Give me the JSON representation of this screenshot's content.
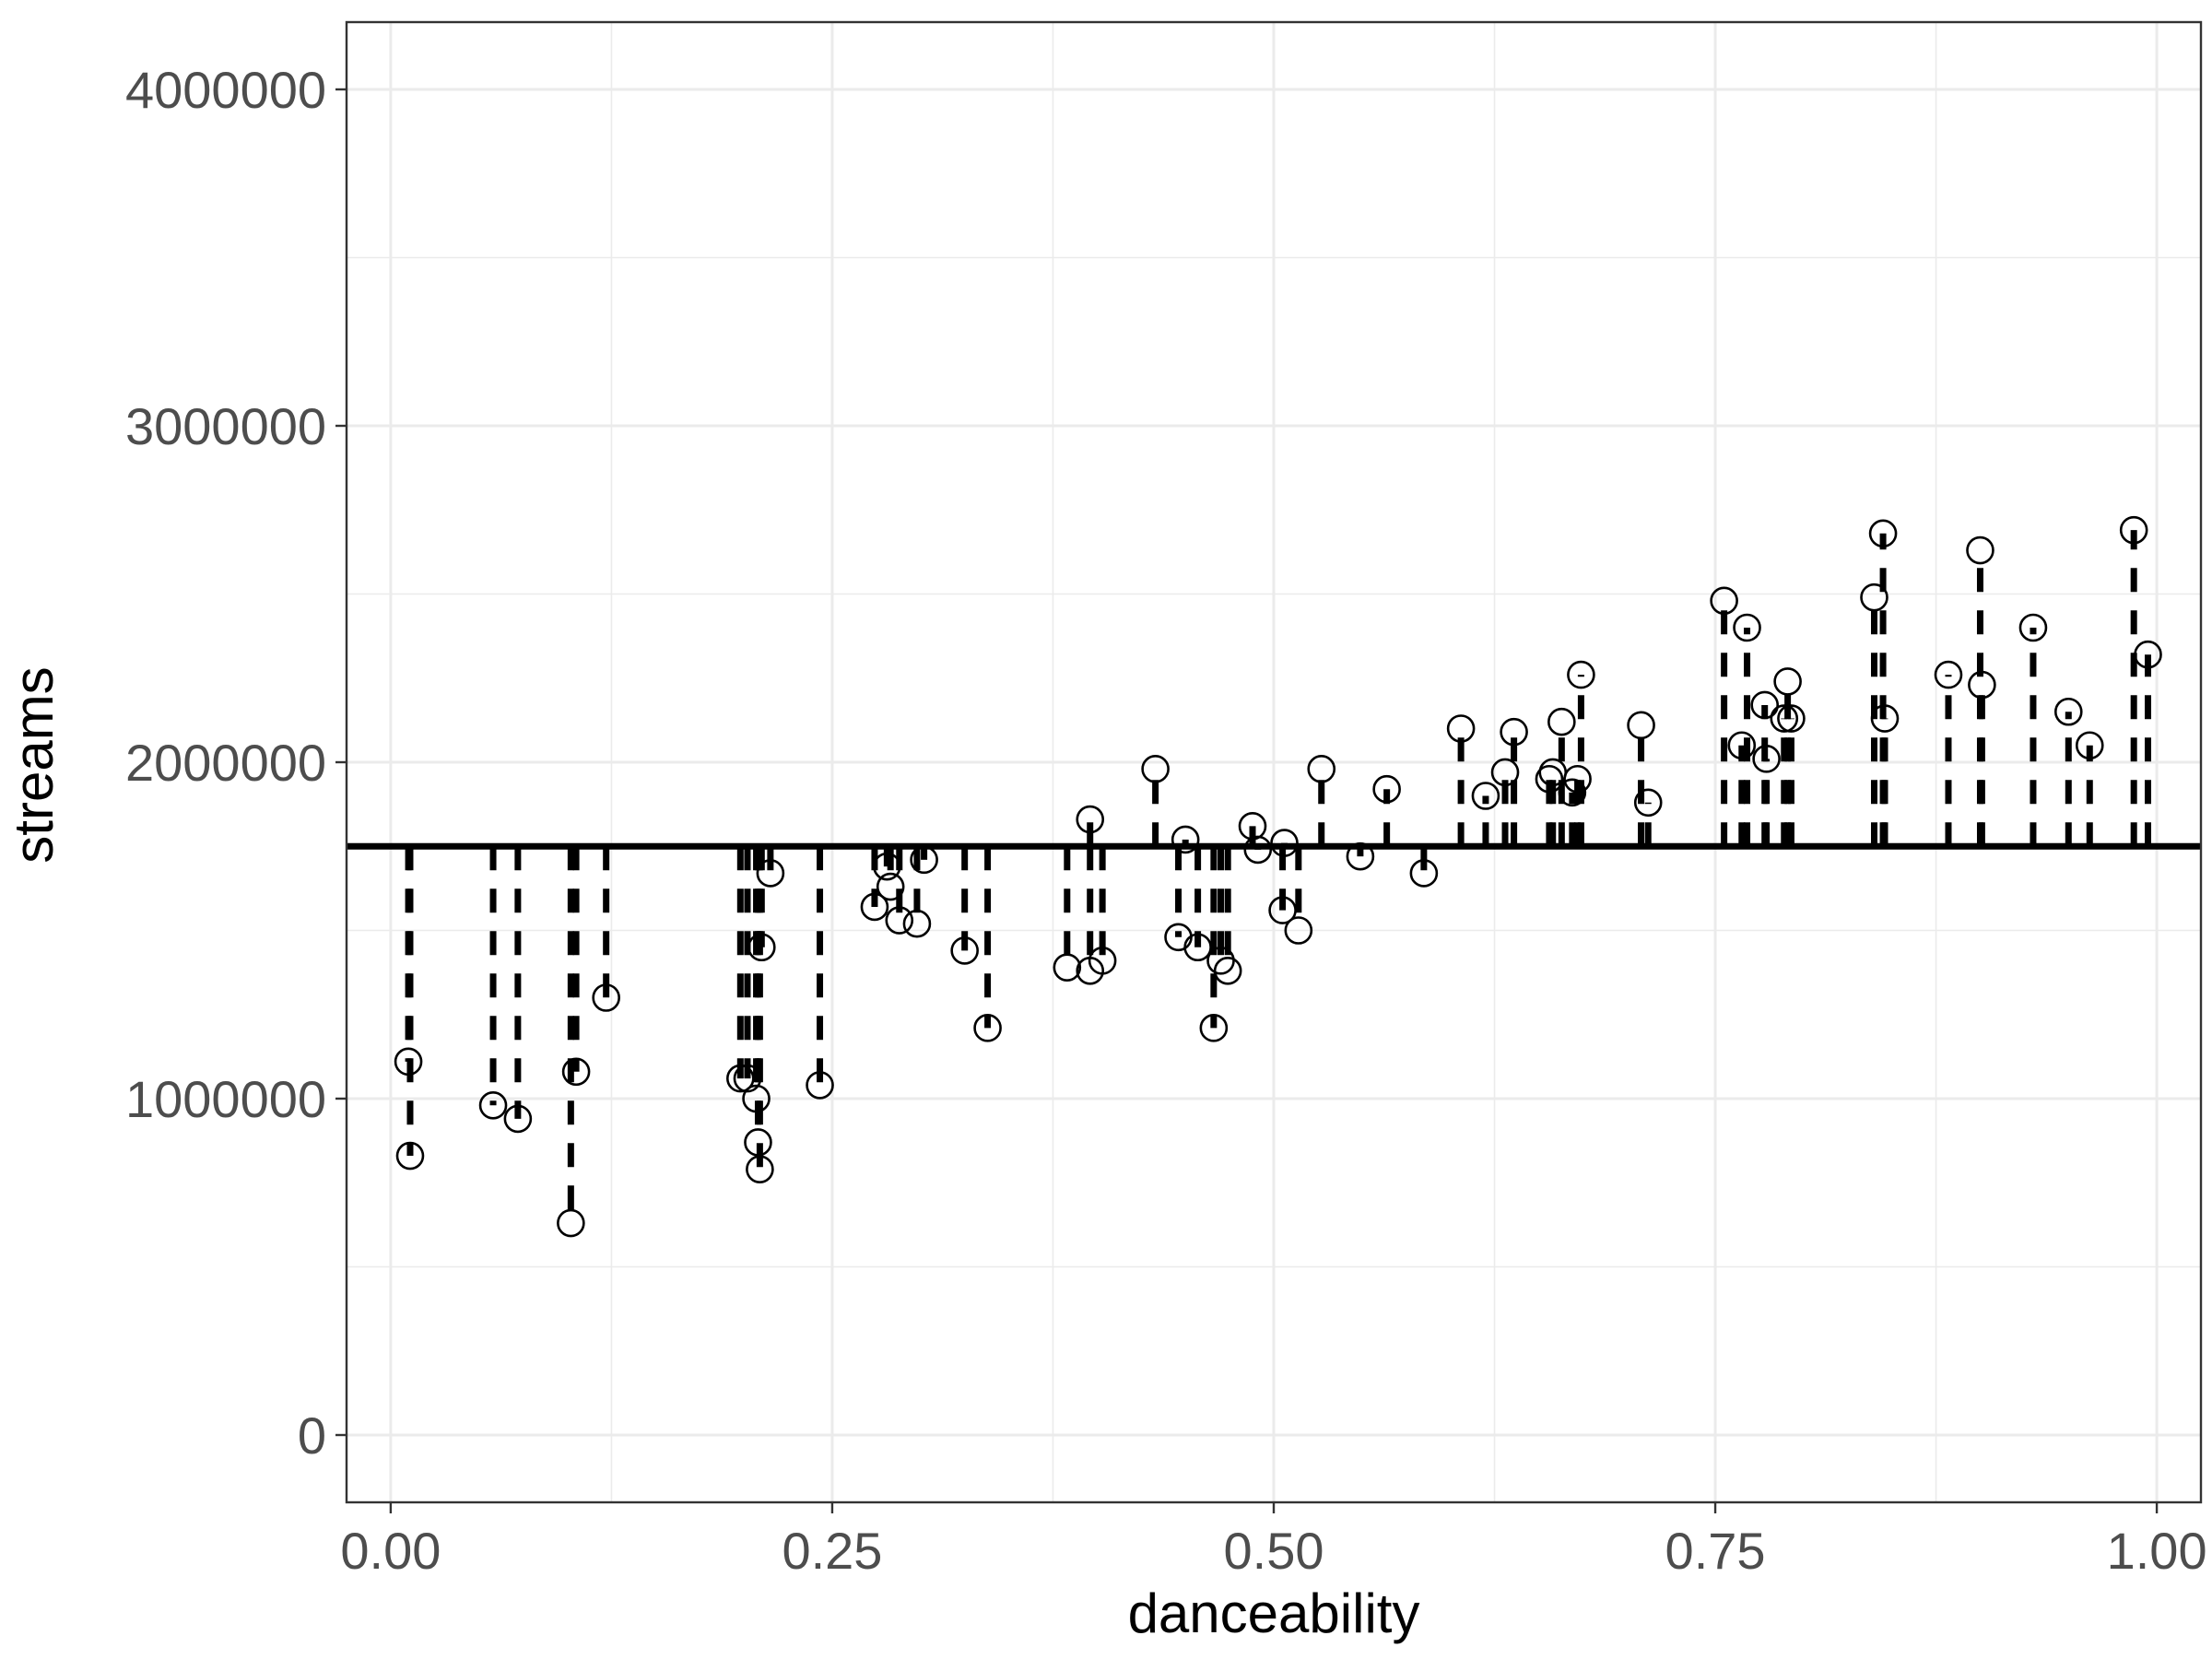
{
  "chart_data": {
    "type": "scatter",
    "title": "",
    "xlabel": "danceability",
    "ylabel": "streams",
    "xlim": [
      -0.025,
      1.025
    ],
    "ylim": [
      -200000,
      4200000
    ],
    "x_ticks": [
      0.0,
      0.25,
      0.5,
      0.75,
      1.0
    ],
    "x_tick_labels": [
      "0.00",
      "0.25",
      "0.50",
      "0.75",
      "1.00"
    ],
    "y_ticks": [
      0,
      1000000,
      2000000,
      3000000,
      4000000
    ],
    "y_tick_labels": [
      "0",
      "1000000",
      "2000000",
      "3000000",
      "4000000"
    ],
    "grid": true,
    "legend": "none",
    "reference_line": {
      "y": 1750000,
      "style": "solid"
    },
    "residual_segments": "dashed vertical segments from each point to the horizontal line",
    "points": [
      [
        0.01,
        1110000
      ],
      [
        0.011,
        830000
      ],
      [
        0.058,
        980000
      ],
      [
        0.072,
        940000
      ],
      [
        0.102,
        630000
      ],
      [
        0.105,
        1080000
      ],
      [
        0.122,
        1300000
      ],
      [
        0.198,
        1060000
      ],
      [
        0.202,
        1060000
      ],
      [
        0.207,
        1000000
      ],
      [
        0.208,
        870000
      ],
      [
        0.209,
        790000
      ],
      [
        0.21,
        1450000
      ],
      [
        0.215,
        1670000
      ],
      [
        0.243,
        1040000
      ],
      [
        0.274,
        1570000
      ],
      [
        0.281,
        1690000
      ],
      [
        0.283,
        1630000
      ],
      [
        0.288,
        1530000
      ],
      [
        0.298,
        1520000
      ],
      [
        0.302,
        1710000
      ],
      [
        0.325,
        1440000
      ],
      [
        0.338,
        1210000
      ],
      [
        0.383,
        1390000
      ],
      [
        0.396,
        1380000
      ],
      [
        0.396,
        1830000
      ],
      [
        0.403,
        1410000
      ],
      [
        0.433,
        1980000
      ],
      [
        0.446,
        1480000
      ],
      [
        0.45,
        1770000
      ],
      [
        0.457,
        1450000
      ],
      [
        0.466,
        1210000
      ],
      [
        0.47,
        1410000
      ],
      [
        0.474,
        1380000
      ],
      [
        0.488,
        1810000
      ],
      [
        0.491,
        1740000
      ],
      [
        0.505,
        1560000
      ],
      [
        0.506,
        1760000
      ],
      [
        0.514,
        1500000
      ],
      [
        0.527,
        1980000
      ],
      [
        0.549,
        1720000
      ],
      [
        0.564,
        1920000
      ],
      [
        0.585,
        1670000
      ],
      [
        0.606,
        2100000
      ],
      [
        0.62,
        1900000
      ],
      [
        0.631,
        1970000
      ],
      [
        0.636,
        2090000
      ],
      [
        0.656,
        1950000
      ],
      [
        0.658,
        1970000
      ],
      [
        0.663,
        2120000
      ],
      [
        0.669,
        1910000
      ],
      [
        0.672,
        1950000
      ],
      [
        0.674,
        2260000
      ],
      [
        0.708,
        2110000
      ],
      [
        0.712,
        1880000
      ],
      [
        0.755,
        2480000
      ],
      [
        0.765,
        2050000
      ],
      [
        0.768,
        2400000
      ],
      [
        0.778,
        2170000
      ],
      [
        0.779,
        2010000
      ],
      [
        0.789,
        2130000
      ],
      [
        0.791,
        2240000
      ],
      [
        0.793,
        2130000
      ],
      [
        0.84,
        2490000
      ],
      [
        0.845,
        2680000
      ],
      [
        0.846,
        2130000
      ],
      [
        0.882,
        2260000
      ],
      [
        0.9,
        2630000
      ],
      [
        0.901,
        2230000
      ],
      [
        0.93,
        2400000
      ],
      [
        0.95,
        2150000
      ],
      [
        0.962,
        2050000
      ],
      [
        0.987,
        2690000
      ],
      [
        0.995,
        2320000
      ]
    ]
  }
}
